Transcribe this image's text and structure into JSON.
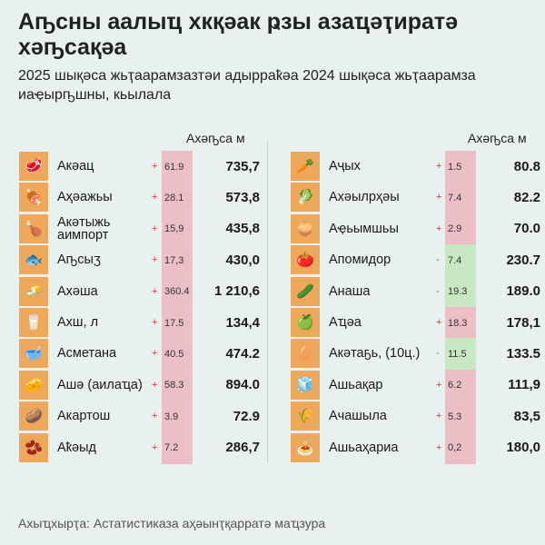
{
  "header": {
    "title": "Аҧсны аалыҵ хкқәак ҏзы азаҵәҭиратә хәҧсақәа",
    "subtitle": "2025 шықәса жьҭаарамзазтәи адырраҟәа 2024 шықәса жьҭаарамза иаҿырҧшны, кьылала"
  },
  "column_header": "Ахәҧса м",
  "colors": {
    "icon_bg": "#eda85a",
    "increase": "#ecbfc6",
    "decrease": "#c8e8c4",
    "plus_sign": "#e0303c",
    "minus_sign": "#3aa04a"
  },
  "left": [
    {
      "icon": "meat-icon",
      "glyph": "🥩",
      "name": "Акәац",
      "sign": "+",
      "change": "61.9",
      "price": "735,7"
    },
    {
      "icon": "ham-icon",
      "glyph": "🍖",
      "name": "Аҳәажьы",
      "sign": "+",
      "change": "28.1",
      "price": "573,8"
    },
    {
      "icon": "chicken-icon",
      "glyph": "🍗",
      "name": "Акәтыжь аимпорт",
      "sign": "+",
      "change": "15,9",
      "price": "435,8"
    },
    {
      "icon": "fish-icon",
      "glyph": "🐟",
      "name": "Аҧсыӡ",
      "sign": "+",
      "change": "17,3",
      "price": "430,0"
    },
    {
      "icon": "butter-icon",
      "glyph": "🧈",
      "name": "Ахәша",
      "sign": "+",
      "change": "360.4",
      "price": "1 210,6"
    },
    {
      "icon": "milk-icon",
      "glyph": "🥛",
      "name": "Ахш, л",
      "sign": "+",
      "change": "17.5",
      "price": "134,4"
    },
    {
      "icon": "sour-cream-icon",
      "glyph": "🥣",
      "name": "Асметана",
      "sign": "+",
      "change": "40.5",
      "price": "474.2"
    },
    {
      "icon": "cheese-icon",
      "glyph": "🧀",
      "name": "Ашә (аилаҵа)",
      "sign": "+",
      "change": "58.3",
      "price": "894.0"
    },
    {
      "icon": "potato-icon",
      "glyph": "🥔",
      "name": "Акартош",
      "sign": "+",
      "change": "3.9",
      "price": "72.9"
    },
    {
      "icon": "beans-icon",
      "glyph": "🫘",
      "name": "Аҟәыд",
      "sign": "+",
      "change": "7.2",
      "price": "286,7"
    }
  ],
  "right": [
    {
      "icon": "carrot-icon",
      "glyph": "🥕",
      "name": "Аҷых",
      "sign": "+",
      "change": "1.5",
      "price": "80.8"
    },
    {
      "icon": "cabbage-icon",
      "glyph": "🥬",
      "name": "Ахәылрҳәы",
      "sign": "+",
      "change": "7.4",
      "price": "82.2"
    },
    {
      "icon": "onion-icon",
      "glyph": "🧅",
      "name": "Аҿьымшьы",
      "sign": "+",
      "change": "2.9",
      "price": "70.0"
    },
    {
      "icon": "tomato-icon",
      "glyph": "🍅",
      "name": "Апомидор",
      "sign": "-",
      "change": "7.4",
      "price": "230.7"
    },
    {
      "icon": "cucumber-icon",
      "glyph": "🥒",
      "name": "Анаша",
      "sign": "-",
      "change": "19.3",
      "price": "189.0"
    },
    {
      "icon": "apple-icon",
      "glyph": "🍏",
      "name": "Аҵәа",
      "sign": "+",
      "change": "18.3",
      "price": "178,1"
    },
    {
      "icon": "egg-icon",
      "glyph": "🥚",
      "name": "Акәтаҕь, (10ц.)",
      "sign": "-",
      "change": "11.5",
      "price": "133.5"
    },
    {
      "icon": "sugar-icon",
      "glyph": "🧊",
      "name": "Ашьақар",
      "sign": "+",
      "change": "6.2",
      "price": "111,9"
    },
    {
      "icon": "flour-icon",
      "glyph": "🌾",
      "name": "Ачашыла",
      "sign": "+",
      "change": "5.3",
      "price": "83,5"
    },
    {
      "icon": "pasta-icon",
      "glyph": "🍝",
      "name": "Ашьаҳариа",
      "sign": "+",
      "change": "0,2",
      "price": "180,0"
    }
  ],
  "footer": "Ахыҵхырҭа: Астатистиказа аҳәынҭқарратә маҵзура"
}
